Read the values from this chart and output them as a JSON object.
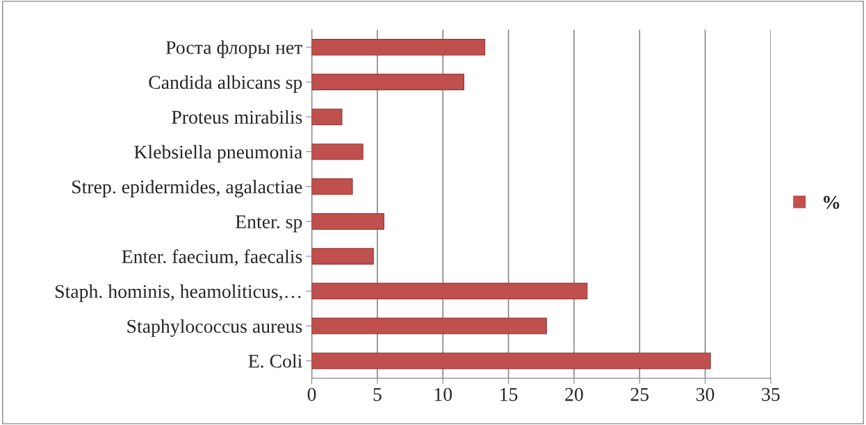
{
  "chart_data": {
    "type": "bar",
    "orientation": "horizontal",
    "categories": [
      "Роста флоры нет",
      "Candida albicans sp",
      "Proteus mirabilis",
      "Klebsiella pneumonia",
      "Strep. epidermides, agalactiae",
      "Enter. sp",
      "Enter. faecium, faecalis",
      "Staph. hominis, heamoliticus,…",
      "Staphylococcus aureus",
      "E. Coli"
    ],
    "series": [
      {
        "name": "%",
        "color": "#c0504d",
        "values": [
          13.2,
          11.6,
          2.3,
          3.9,
          3.1,
          5.5,
          4.7,
          21.0,
          17.9,
          30.4
        ]
      }
    ],
    "xlim": [
      0,
      35
    ],
    "xticks": [
      0,
      5,
      10,
      15,
      20,
      25,
      30,
      35
    ],
    "grid": "x",
    "legend": "right"
  }
}
